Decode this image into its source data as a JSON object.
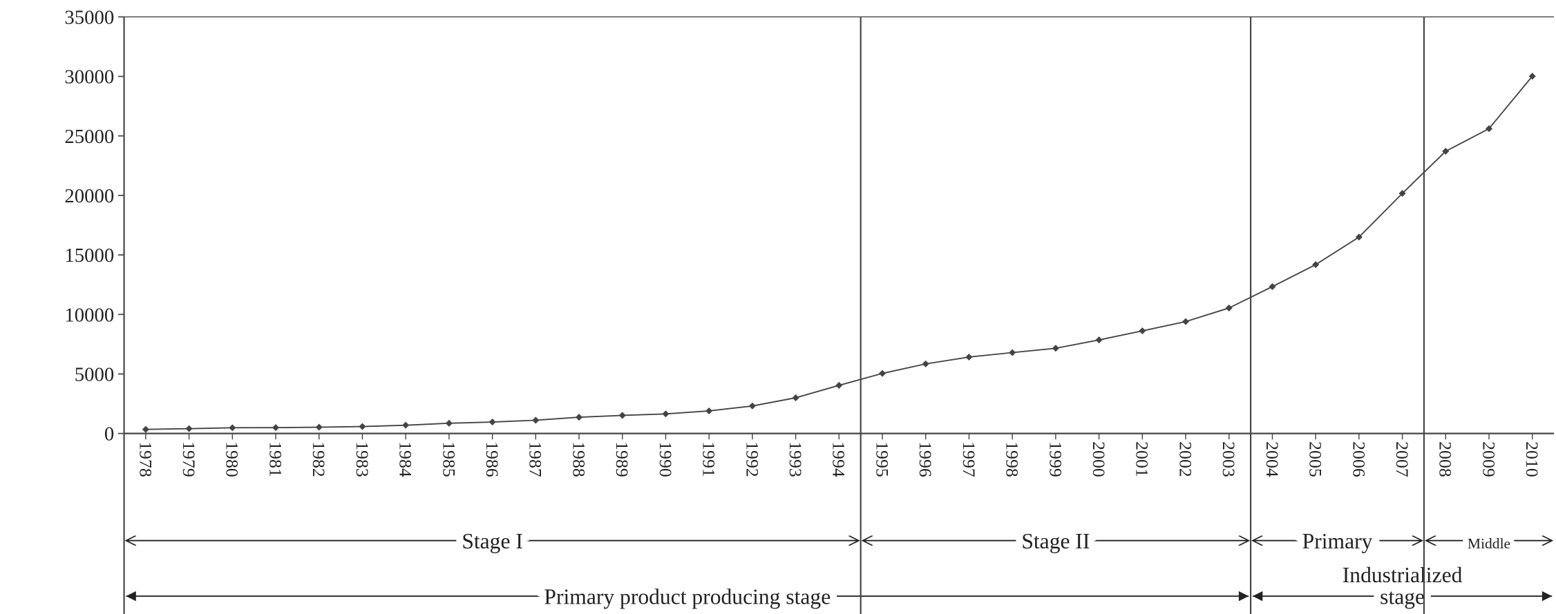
{
  "chart_data": {
    "type": "line",
    "categories": [
      "1978",
      "1979",
      "1980",
      "1981",
      "1982",
      "1983",
      "1984",
      "1985",
      "1986",
      "1987",
      "1988",
      "1989",
      "1990",
      "1991",
      "1992",
      "1993",
      "1994",
      "1995",
      "1996",
      "1997",
      "1998",
      "1999",
      "2000",
      "2001",
      "2002",
      "2003",
      "2004",
      "2005",
      "2006",
      "2007",
      "2008",
      "2009",
      "2010"
    ],
    "values": [
      343,
      405,
      478,
      492,
      528,
      583,
      695,
      858,
      963,
      1112,
      1366,
      1519,
      1644,
      1893,
      2311,
      2998,
      4044,
      5046,
      5846,
      6420,
      6796,
      7159,
      7858,
      8622,
      9398,
      10542,
      12336,
      14185,
      16500,
      20169,
      23708,
      25608,
      30015
    ],
    "color": "#444444",
    "ylim": [
      0,
      35000
    ],
    "yticks": [
      0,
      5000,
      10000,
      15000,
      20000,
      25000,
      30000,
      35000
    ],
    "stages": [
      {
        "row": 1,
        "label": [
          "Stage I"
        ],
        "start": "1978",
        "end": "1994"
      },
      {
        "row": 1,
        "label": [
          "Stage II"
        ],
        "start": "1995",
        "end": "2003"
      },
      {
        "row": 1,
        "label": [
          "Primary"
        ],
        "start": "2004",
        "end": "2007"
      },
      {
        "row": 1,
        "label": [
          "Middle"
        ],
        "start": "2008",
        "end": "2010"
      },
      {
        "row": 2,
        "label": [
          "Primary product producing stage"
        ],
        "start": "1978",
        "end": "2003"
      },
      {
        "row": 2,
        "label": [
          "Industrialized",
          "stage"
        ],
        "start": "2004",
        "end": "2010"
      }
    ]
  }
}
